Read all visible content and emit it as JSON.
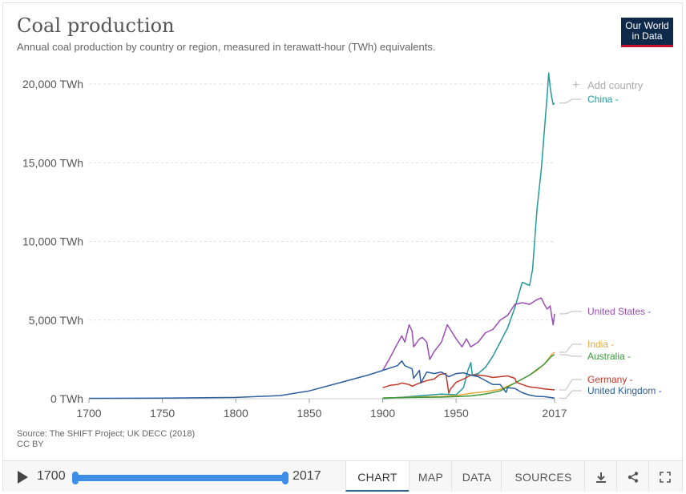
{
  "header": {
    "title": "Coal production",
    "subtitle": "Annual coal production by country or region, measured in terawatt-hour (TWh) equivalents.",
    "logo_line1": "Our World",
    "logo_line2": "in Data"
  },
  "add_country_label": "Add country",
  "source": {
    "line1": "Source: The SHIFT Project; UK DECC (2018)",
    "line2": "CC BY"
  },
  "footer": {
    "start_year": "1700",
    "end_year": "2017",
    "tabs": [
      "CHART",
      "MAP",
      "DATA",
      "SOURCES"
    ],
    "active_tab": "CHART",
    "icons": [
      "download-icon",
      "share-icon",
      "fullscreen-icon"
    ]
  },
  "colors": {
    "China": "#22999b",
    "United States": "#9c4cb7",
    "India": "#e8a93a",
    "Australia": "#3c9a3c",
    "Germany": "#c0392b",
    "United Kingdom": "#2c5f9e",
    "grid": "#dddddd",
    "axis_text": "#555555"
  },
  "chart_data": {
    "type": "line",
    "title": "Coal production",
    "ylabel": "",
    "xlabel": "",
    "xlim": [
      1700,
      2017
    ],
    "ylim": [
      0,
      20000
    ],
    "x_ticks": [
      "1700",
      "1750",
      "1800",
      "1850",
      "1900",
      "1950",
      "2017"
    ],
    "y_ticks": [
      "0 TWh",
      "5,000 TWh",
      "10,000 TWh",
      "15,000 TWh",
      "20,000 TWh"
    ],
    "grid": true,
    "legend": "right-end labels",
    "series": [
      {
        "name": "China",
        "label": "China",
        "x": [
          1900,
          1920,
          1940,
          1950,
          1955,
          1958,
          1960,
          1961,
          1965,
          1970,
          1975,
          1980,
          1985,
          1990,
          1995,
          2000,
          2002,
          2005,
          2008,
          2010,
          2012,
          2013,
          2014,
          2015,
          2016,
          2017
        ],
        "y": [
          0,
          150,
          300,
          250,
          700,
          1800,
          2300,
          1500,
          1600,
          2000,
          2700,
          3600,
          4500,
          5800,
          7400,
          7200,
          8200,
          12000,
          14600,
          17000,
          19300,
          20700,
          19800,
          19200,
          18700,
          18800
        ]
      },
      {
        "name": "United States",
        "label": "United States",
        "x": [
          1900,
          1905,
          1910,
          1913,
          1915,
          1918,
          1920,
          1921,
          1925,
          1927,
          1930,
          1932,
          1935,
          1940,
          1944,
          1946,
          1950,
          1954,
          1957,
          1960,
          1965,
          1970,
          1975,
          1980,
          1985,
          1990,
          1995,
          2000,
          2005,
          2008,
          2010,
          2012,
          2014,
          2015,
          2016,
          2017
        ],
        "y": [
          1800,
          2600,
          3500,
          4000,
          3600,
          4700,
          4300,
          3300,
          3800,
          3900,
          3600,
          2500,
          3000,
          3600,
          4700,
          4400,
          3800,
          3300,
          3800,
          3300,
          3600,
          4200,
          4400,
          5000,
          5300,
          6000,
          6100,
          6000,
          6300,
          6400,
          6000,
          5700,
          5900,
          5300,
          4700,
          5400
        ]
      },
      {
        "name": "India",
        "label": "India",
        "x": [
          1900,
          1920,
          1940,
          1950,
          1960,
          1970,
          1980,
          1990,
          2000,
          2005,
          2010,
          2015,
          2017
        ],
        "y": [
          40,
          100,
          150,
          200,
          350,
          450,
          600,
          1000,
          1500,
          1800,
          2200,
          2800,
          2950
        ]
      },
      {
        "name": "Australia",
        "label": "Australia",
        "x": [
          1900,
          1920,
          1940,
          1950,
          1960,
          1970,
          1980,
          1990,
          2000,
          2005,
          2010,
          2015,
          2017
        ],
        "y": [
          50,
          80,
          100,
          130,
          180,
          300,
          500,
          1000,
          1500,
          1850,
          2200,
          2700,
          2800
        ]
      },
      {
        "name": "Germany",
        "label": "Germany",
        "x": [
          1900,
          1905,
          1910,
          1913,
          1918,
          1920,
          1925,
          1930,
          1935,
          1939,
          1943,
          1945,
          1946,
          1950,
          1955,
          1960,
          1965,
          1970,
          1975,
          1980,
          1985,
          1990,
          1991,
          1995,
          2000,
          2005,
          2010,
          2015,
          2017
        ],
        "y": [
          700,
          850,
          900,
          1000,
          900,
          800,
          1000,
          1150,
          1250,
          1550,
          1600,
          350,
          600,
          1050,
          1250,
          1500,
          1500,
          1450,
          1350,
          1400,
          1450,
          1300,
          1050,
          900,
          750,
          700,
          620,
          580,
          560
        ]
      },
      {
        "name": "United Kingdom",
        "label": "United Kingdom",
        "x": [
          1700,
          1750,
          1800,
          1830,
          1850,
          1870,
          1890,
          1900,
          1905,
          1910,
          1913,
          1915,
          1920,
          1921,
          1925,
          1926,
          1930,
          1935,
          1940,
          1945,
          1950,
          1955,
          1960,
          1965,
          1970,
          1975,
          1980,
          1984,
          1985,
          1990,
          1995,
          2000,
          2005,
          2010,
          2015,
          2017
        ],
        "y": [
          25,
          40,
          80,
          200,
          500,
          1000,
          1500,
          1800,
          1950,
          2100,
          2400,
          2100,
          1900,
          1300,
          1800,
          1000,
          1700,
          1600,
          1700,
          1400,
          1600,
          1650,
          1500,
          1400,
          1150,
          900,
          900,
          400,
          700,
          650,
          380,
          230,
          150,
          130,
          70,
          30
        ]
      }
    ]
  }
}
